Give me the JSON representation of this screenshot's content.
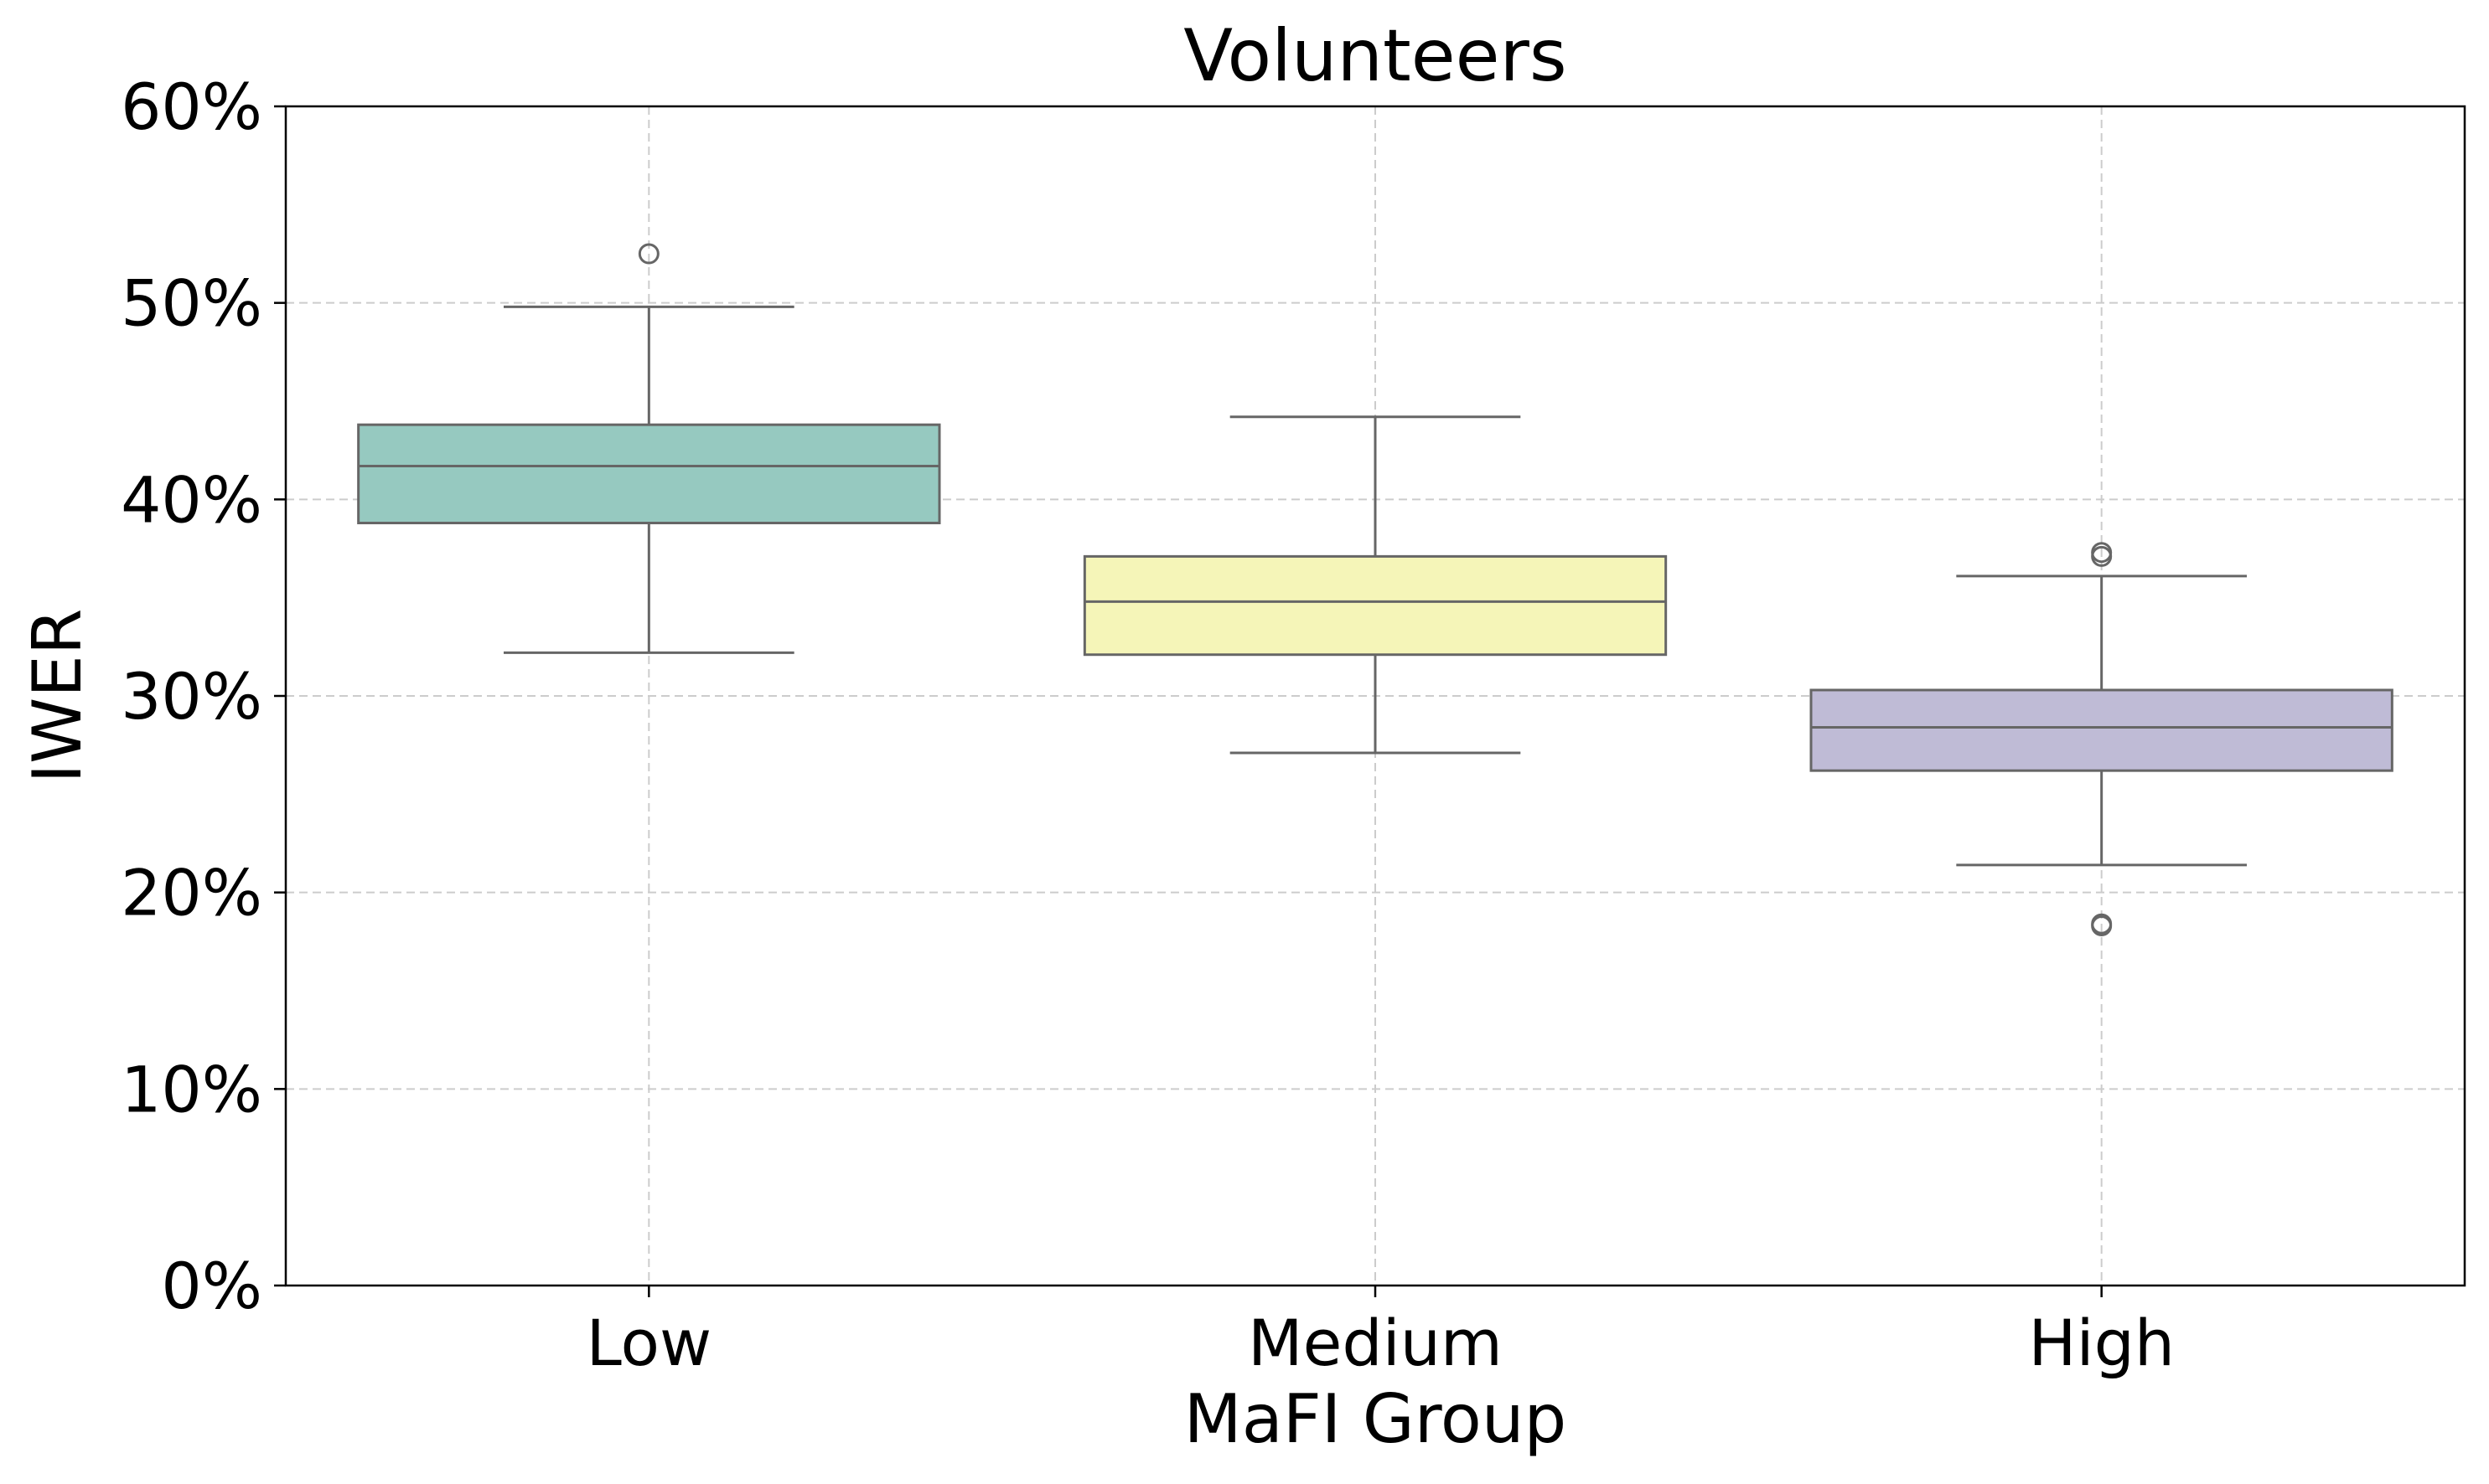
{
  "chart_data": {
    "type": "box",
    "title": "Volunteers",
    "xlabel": "MaFI Group",
    "ylabel": "IWER",
    "ylim": [
      0,
      60
    ],
    "y_tick_format": "percent",
    "y_ticks": [
      0,
      10,
      20,
      30,
      40,
      50,
      60
    ],
    "y_tick_labels": [
      "0%",
      "10%",
      "20%",
      "30%",
      "40%",
      "50%",
      "60%"
    ],
    "grid": true,
    "categories": [
      "Low",
      "Medium",
      "High"
    ],
    "boxes": [
      {
        "category": "Low",
        "whisker_low": 32.2,
        "q1": 38.8,
        "median": 41.7,
        "q3": 43.8,
        "whisker_high": 49.8,
        "outliers": [
          52.5
        ],
        "color": "#96c9c0"
      },
      {
        "category": "Medium",
        "whisker_low": 27.1,
        "q1": 32.1,
        "median": 34.8,
        "q3": 37.1,
        "whisker_high": 44.2,
        "outliers": [],
        "color": "#f5f5b8"
      },
      {
        "category": "High",
        "whisker_low": 21.4,
        "q1": 26.2,
        "median": 28.4,
        "q3": 30.3,
        "whisker_high": 36.1,
        "outliers": [
          37.3,
          37.1,
          18.4,
          18.3
        ],
        "color": "#bfbbd6"
      }
    ],
    "line_color": "#666666",
    "grid_color": "#cccccc"
  }
}
